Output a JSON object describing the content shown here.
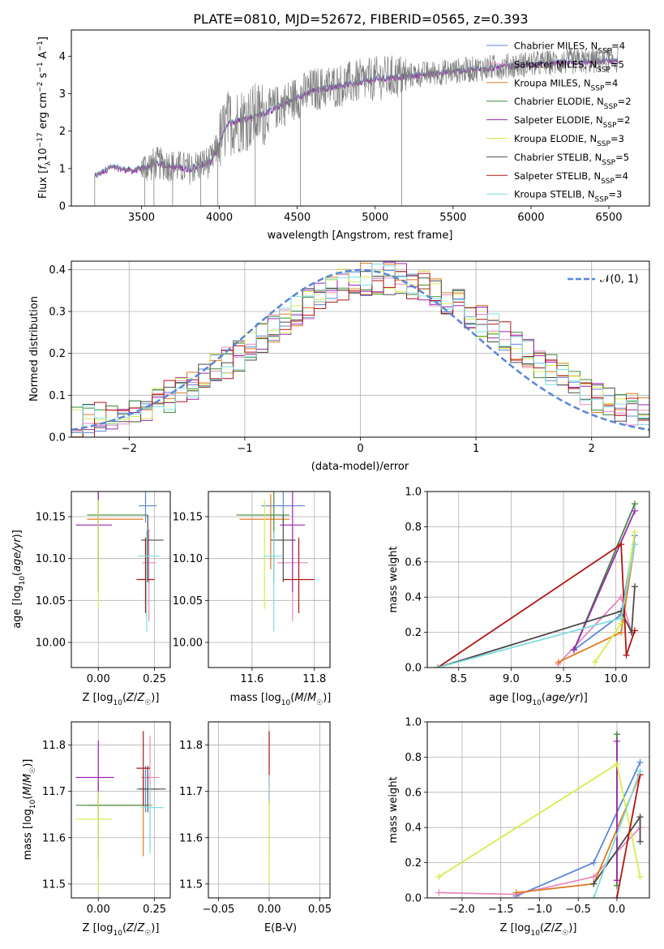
{
  "figure_title": "PLATE=0810, MJD=52672, FIBERID=0565, z=0.393",
  "colors": {
    "Chabrier MILES": "#5b86d6",
    "Salpeter MILES": "#e58ac0",
    "Kroupa MILES": "#e07a1f",
    "Chabrier ELODIE": "#3f8a3f",
    "Salpeter ELODIE": "#9a27b0",
    "Kroupa ELODIE": "#d7ec4c",
    "Chabrier STELIB": "#4b4b4b",
    "Salpeter STELIB": "#b01515",
    "Kroupa STELIB": "#7fdde0",
    "data": "#808080",
    "normal": "#5b86d6"
  },
  "chart_data": [
    {
      "type": "line",
      "panel": "spectrum",
      "xlabel": "wavelength [Angstrom, rest frame]",
      "ylabel": "Flux [f_λ10^-17 erg cm^-2 s^-1 A^-1]",
      "xlim": [
        3050,
        6760
      ],
      "ylim": [
        0,
        4.7
      ],
      "xticks": [
        3500,
        4000,
        4500,
        5000,
        5500,
        6000,
        6500
      ],
      "yticks": [
        0,
        1,
        2,
        3,
        4
      ],
      "legend_position": "right",
      "legend": [
        "Chabrier MILES, N_SSP=4",
        "Salpeter MILES, N_SSP=5",
        "Kroupa MILES, N_SSP=4",
        "Chabrier ELODIE, N_SSP=2",
        "Salpeter ELODIE, N_SSP=2",
        "Kroupa ELODIE, N_SSP=3",
        "Chabrier STELIB, N_SSP=5",
        "Salpeter STELIB, N_SSP=4",
        "Kroupa STELIB, N_SSP=3"
      ],
      "continuum_anchors": [
        [
          3200,
          0.8
        ],
        [
          3300,
          1.05
        ],
        [
          3450,
          0.95
        ],
        [
          3600,
          1.15
        ],
        [
          3800,
          1.0
        ],
        [
          3950,
          1.2
        ],
        [
          4050,
          2.2
        ],
        [
          4300,
          2.5
        ],
        [
          4600,
          3.1
        ],
        [
          5000,
          3.4
        ],
        [
          5500,
          3.6
        ],
        [
          6000,
          3.8
        ],
        [
          6550,
          3.9
        ]
      ],
      "grid": false
    },
    {
      "type": "histogram",
      "panel": "residuals",
      "xlabel": "(data-model)/error",
      "ylabel": "Normed distribution",
      "xlim": [
        -2.5,
        2.5
      ],
      "ylim": [
        0,
        0.42
      ],
      "xticks": [
        -2,
        -1,
        0,
        1,
        2
      ],
      "yticks": [
        0.0,
        0.1,
        0.2,
        0.3,
        0.4
      ],
      "legend": [
        "𝒩(0, 1)"
      ],
      "legend_position": "top-right",
      "grid": true
    },
    {
      "type": "scatter",
      "panel": "age_vs_Z",
      "xlabel": "Z [log10(Z/Z☉)]",
      "ylabel": "age  [log10(age/yr)]",
      "xlim": [
        -0.12,
        0.32
      ],
      "ylim": [
        9.97,
        10.18
      ],
      "xticks": [
        0.0,
        0.25
      ],
      "yticks": [
        10.0,
        10.05,
        10.1,
        10.15
      ],
      "points": [
        {
          "series": "Chabrier MILES",
          "x": 0.21,
          "y": 10.163,
          "xerr": [
            0.03,
            0.05
          ],
          "yerr": [
            0.02,
            0.02
          ]
        },
        {
          "series": "Salpeter MILES",
          "x": 0.225,
          "y": 10.095,
          "xerr": [
            0.03,
            0.03
          ],
          "yerr": [
            0.07,
            0.04
          ]
        },
        {
          "series": "Kroupa MILES",
          "x": 0.0,
          "y": 10.147,
          "xerr": [
            0.05,
            0.2
          ],
          "yerr": [
            0.06,
            0.03
          ]
        },
        {
          "series": "Chabrier ELODIE",
          "x": 0.0,
          "y": 10.152,
          "xerr": [
            0.05,
            0.22
          ],
          "yerr": [
            0.08,
            0.03
          ]
        },
        {
          "series": "Salpeter ELODIE",
          "x": 0.0,
          "y": 10.14,
          "xerr": [
            0.1,
            0.06
          ],
          "yerr": [
            0.08,
            0.04
          ]
        },
        {
          "series": "Kroupa ELODIE",
          "x": 0.0,
          "y": 10.13,
          "xerr": [
            0.0,
            0.0
          ],
          "yerr": [
            0.09,
            0.04
          ]
        },
        {
          "series": "Chabrier STELIB",
          "x": 0.22,
          "y": 10.122,
          "xerr": [
            0.03,
            0.07
          ],
          "yerr": [
            0.05,
            0.03
          ]
        },
        {
          "series": "Salpeter STELIB",
          "x": 0.21,
          "y": 10.075,
          "xerr": [
            0.04,
            0.04
          ],
          "yerr": [
            0.04,
            0.05
          ]
        },
        {
          "series": "Kroupa STELIB",
          "x": 0.215,
          "y": 10.103,
          "xerr": [
            0.04,
            0.06
          ],
          "yerr": [
            0.09,
            0.03
          ]
        }
      ],
      "grid": true
    },
    {
      "type": "scatter",
      "panel": "age_vs_mass",
      "xlabel": "mass [log10(M/M☉)]",
      "ylabel": "",
      "xlim": [
        11.46,
        11.85
      ],
      "ylim": [
        9.97,
        10.18
      ],
      "xticks": [
        11.6,
        11.8
      ],
      "yticks": [
        10.0,
        10.05,
        10.1,
        10.15
      ],
      "points": [
        {
          "series": "Chabrier MILES",
          "x": 11.7,
          "y": 10.163,
          "xerr": [
            0.07,
            0.07
          ],
          "yerr": [
            0.02,
            0.02
          ]
        },
        {
          "series": "Salpeter MILES",
          "x": 11.73,
          "y": 10.095,
          "xerr": [
            0.05,
            0.05
          ],
          "yerr": [
            0.07,
            0.04
          ]
        },
        {
          "series": "Kroupa MILES",
          "x": 11.66,
          "y": 10.147,
          "xerr": [
            0.1,
            0.06
          ],
          "yerr": [
            0.06,
            0.03
          ]
        },
        {
          "series": "Chabrier ELODIE",
          "x": 11.67,
          "y": 10.152,
          "xerr": [
            0.12,
            0.05
          ],
          "yerr": [
            0.08,
            0.03
          ]
        },
        {
          "series": "Salpeter ELODIE",
          "x": 11.73,
          "y": 10.14,
          "xerr": [
            0.04,
            0.04
          ],
          "yerr": [
            0.08,
            0.04
          ]
        },
        {
          "series": "Kroupa ELODIE",
          "x": 11.64,
          "y": 10.13,
          "xerr": [
            0.0,
            0.0
          ],
          "yerr": [
            0.09,
            0.04
          ]
        },
        {
          "series": "Chabrier STELIB",
          "x": 11.7,
          "y": 10.122,
          "xerr": [
            0.04,
            0.04
          ],
          "yerr": [
            0.05,
            0.03
          ]
        },
        {
          "series": "Salpeter STELIB",
          "x": 11.75,
          "y": 10.075,
          "xerr": [
            0.05,
            0.05
          ],
          "yerr": [
            0.04,
            0.05
          ]
        },
        {
          "series": "Kroupa STELIB",
          "x": 11.67,
          "y": 10.103,
          "xerr": [
            0.03,
            0.03
          ],
          "yerr": [
            0.09,
            0.03
          ]
        }
      ],
      "grid": true
    },
    {
      "type": "line",
      "panel": "mass_weight_vs_age",
      "xlabel": "age  [log10(age/yr)]",
      "ylabel": "mass weight",
      "xlim": [
        8.2,
        10.32
      ],
      "ylim": [
        0,
        1
      ],
      "xticks": [
        8.5,
        9.0,
        9.5,
        10.0
      ],
      "yticks": [
        0.0,
        0.2,
        0.4,
        0.6,
        0.8,
        1.0
      ],
      "series": [
        {
          "name": "Chabrier MILES",
          "points": [
            [
              9.6,
              0.1
            ],
            [
              10.05,
              0.3
            ],
            [
              10.18,
              0.75
            ]
          ]
        },
        {
          "name": "Salpeter MILES",
          "points": [
            [
              9.45,
              0.02
            ],
            [
              10.05,
              0.4
            ],
            [
              10.15,
              0.2
            ]
          ]
        },
        {
          "name": "Kroupa MILES",
          "points": [
            [
              9.45,
              0.03
            ],
            [
              10.05,
              0.2
            ],
            [
              10.18,
              0.7
            ]
          ]
        },
        {
          "name": "Chabrier ELODIE",
          "points": [
            [
              9.6,
              0.1
            ],
            [
              10.18,
              0.93
            ]
          ]
        },
        {
          "name": "Salpeter ELODIE",
          "points": [
            [
              9.6,
              0.1
            ],
            [
              10.18,
              0.89
            ]
          ]
        },
        {
          "name": "Kroupa ELODIE",
          "points": [
            [
              9.8,
              0.03
            ],
            [
              10.05,
              0.25
            ],
            [
              10.18,
              0.77
            ]
          ]
        },
        {
          "name": "Chabrier STELIB",
          "points": [
            [
              8.3,
              0.0
            ],
            [
              10.05,
              0.32
            ],
            [
              10.15,
              0.2
            ],
            [
              10.18,
              0.46
            ]
          ]
        },
        {
          "name": "Salpeter STELIB",
          "points": [
            [
              8.3,
              0.0
            ],
            [
              10.05,
              0.7
            ],
            [
              10.1,
              0.07
            ],
            [
              10.18,
              0.21
            ]
          ]
        },
        {
          "name": "Kroupa STELIB",
          "points": [
            [
              8.3,
              0.0
            ],
            [
              10.05,
              0.28
            ],
            [
              10.18,
              0.7
            ]
          ]
        }
      ],
      "grid": true
    },
    {
      "type": "scatter",
      "panel": "mass_vs_Z",
      "xlabel": "Z [log10(Z/Z☉)]",
      "ylabel": "mass [log10(M/M☉)]",
      "xlim": [
        -0.12,
        0.32
      ],
      "ylim": [
        11.47,
        11.85
      ],
      "xticks": [
        0.0,
        0.25
      ],
      "yticks": [
        11.5,
        11.6,
        11.7,
        11.8
      ],
      "points": [
        {
          "series": "Chabrier MILES",
          "x": 0.21,
          "y": 11.705,
          "xerr": [
            0.04,
            0.06
          ],
          "yerr": [
            0.05,
            0.05
          ]
        },
        {
          "series": "Salpeter MILES",
          "x": 0.23,
          "y": 11.73,
          "xerr": [
            0.04,
            0.04
          ],
          "yerr": [
            0.15,
            0.09
          ]
        },
        {
          "series": "Kroupa MILES",
          "x": 0.2,
          "y": 11.67,
          "xerr": [
            0.25,
            0.04
          ],
          "yerr": [
            0.11,
            0.07
          ]
        },
        {
          "series": "Chabrier ELODIE",
          "x": 0.0,
          "y": 11.67,
          "xerr": [
            0.1,
            0.22
          ],
          "yerr": [
            0.12,
            0.05
          ]
        },
        {
          "series": "Salpeter ELODIE",
          "x": 0.0,
          "y": 11.73,
          "xerr": [
            0.1,
            0.07
          ],
          "yerr": [
            0.07,
            0.08
          ]
        },
        {
          "series": "Kroupa ELODIE",
          "x": 0.0,
          "y": 11.64,
          "xerr": [
            0.1,
            0.06
          ],
          "yerr": [
            0.16,
            0.06
          ]
        },
        {
          "series": "Chabrier STELIB",
          "x": 0.22,
          "y": 11.705,
          "xerr": [
            0.04,
            0.08
          ],
          "yerr": [
            0.05,
            0.05
          ]
        },
        {
          "series": "Salpeter STELIB",
          "x": 0.2,
          "y": 11.75,
          "xerr": [
            0.03,
            0.03
          ],
          "yerr": [
            0.08,
            0.08
          ]
        },
        {
          "series": "Kroupa STELIB",
          "x": 0.23,
          "y": 11.665,
          "xerr": [
            0.04,
            0.06
          ],
          "yerr": [
            0.1,
            0.05
          ]
        }
      ],
      "grid": true
    },
    {
      "type": "scatter",
      "panel": "mass_vs_ebv",
      "xlabel": "E(B-V)",
      "ylabel": "",
      "xlim": [
        -0.06,
        0.06
      ],
      "ylim": [
        11.47,
        11.85
      ],
      "xticks": [
        -0.05,
        0.0,
        0.05
      ],
      "yticks": [
        11.5,
        11.6,
        11.7,
        11.8
      ],
      "points": [
        {
          "series": "Salpeter STELIB",
          "x": 0.0,
          "y": 11.75,
          "xerr": [
            0,
            0
          ],
          "yerr": [
            0.08,
            0.08
          ]
        },
        {
          "series": "Kroupa STELIB",
          "x": 0.0,
          "y": 11.665,
          "xerr": [
            0,
            0
          ],
          "yerr": [
            0.1,
            0.07
          ]
        },
        {
          "series": "Kroupa ELODIE",
          "x": 0.0,
          "y": 11.64,
          "xerr": [
            0,
            0
          ],
          "yerr": [
            0.14,
            0.04
          ]
        }
      ],
      "grid": true
    },
    {
      "type": "line",
      "panel": "mass_weight_vs_Z",
      "xlabel": "Z [log10(Z/Z☉)]",
      "ylabel": "mass weight",
      "xlim": [
        -2.45,
        0.42
      ],
      "ylim": [
        0,
        1
      ],
      "xticks": [
        -2.0,
        -1.5,
        -1.0,
        -0.5,
        0.0
      ],
      "yticks": [
        0.0,
        0.2,
        0.4,
        0.6,
        0.8,
        1.0
      ],
      "series": [
        {
          "name": "Chabrier MILES",
          "points": [
            [
              -1.3,
              0.01
            ],
            [
              -0.3,
              0.2
            ],
            [
              0.3,
              0.77
            ]
          ]
        },
        {
          "name": "Salpeter MILES",
          "points": [
            [
              -2.3,
              0.03
            ],
            [
              -1.3,
              0.02
            ],
            [
              -0.3,
              0.12
            ],
            [
              0.3,
              0.4
            ]
          ]
        },
        {
          "name": "Kroupa MILES",
          "points": [
            [
              -1.3,
              0.03
            ],
            [
              -0.3,
              0.08
            ],
            [
              0.3,
              0.7
            ]
          ]
        },
        {
          "name": "Chabrier ELODIE",
          "points": [
            [
              0.0,
              0.07
            ],
            [
              0.0,
              0.93
            ]
          ]
        },
        {
          "name": "Salpeter ELODIE",
          "points": [
            [
              0.0,
              0.1
            ],
            [
              0.0,
              0.89
            ]
          ]
        },
        {
          "name": "Kroupa ELODIE",
          "points": [
            [
              -2.3,
              0.12
            ],
            [
              0.0,
              0.76
            ],
            [
              0.3,
              0.12
            ]
          ]
        },
        {
          "name": "Chabrier STELIB",
          "points": [
            [
              -0.3,
              0.08
            ],
            [
              0.3,
              0.46
            ],
            [
              0.3,
              0.32
            ]
          ]
        },
        {
          "name": "Salpeter STELIB",
          "points": [
            [
              0.0,
              0.0
            ],
            [
              0.3,
              0.7
            ]
          ]
        },
        {
          "name": "Kroupa STELIB",
          "points": [
            [
              -0.3,
              0.0
            ],
            [
              0.3,
              0.72
            ]
          ]
        }
      ],
      "grid": true
    }
  ]
}
